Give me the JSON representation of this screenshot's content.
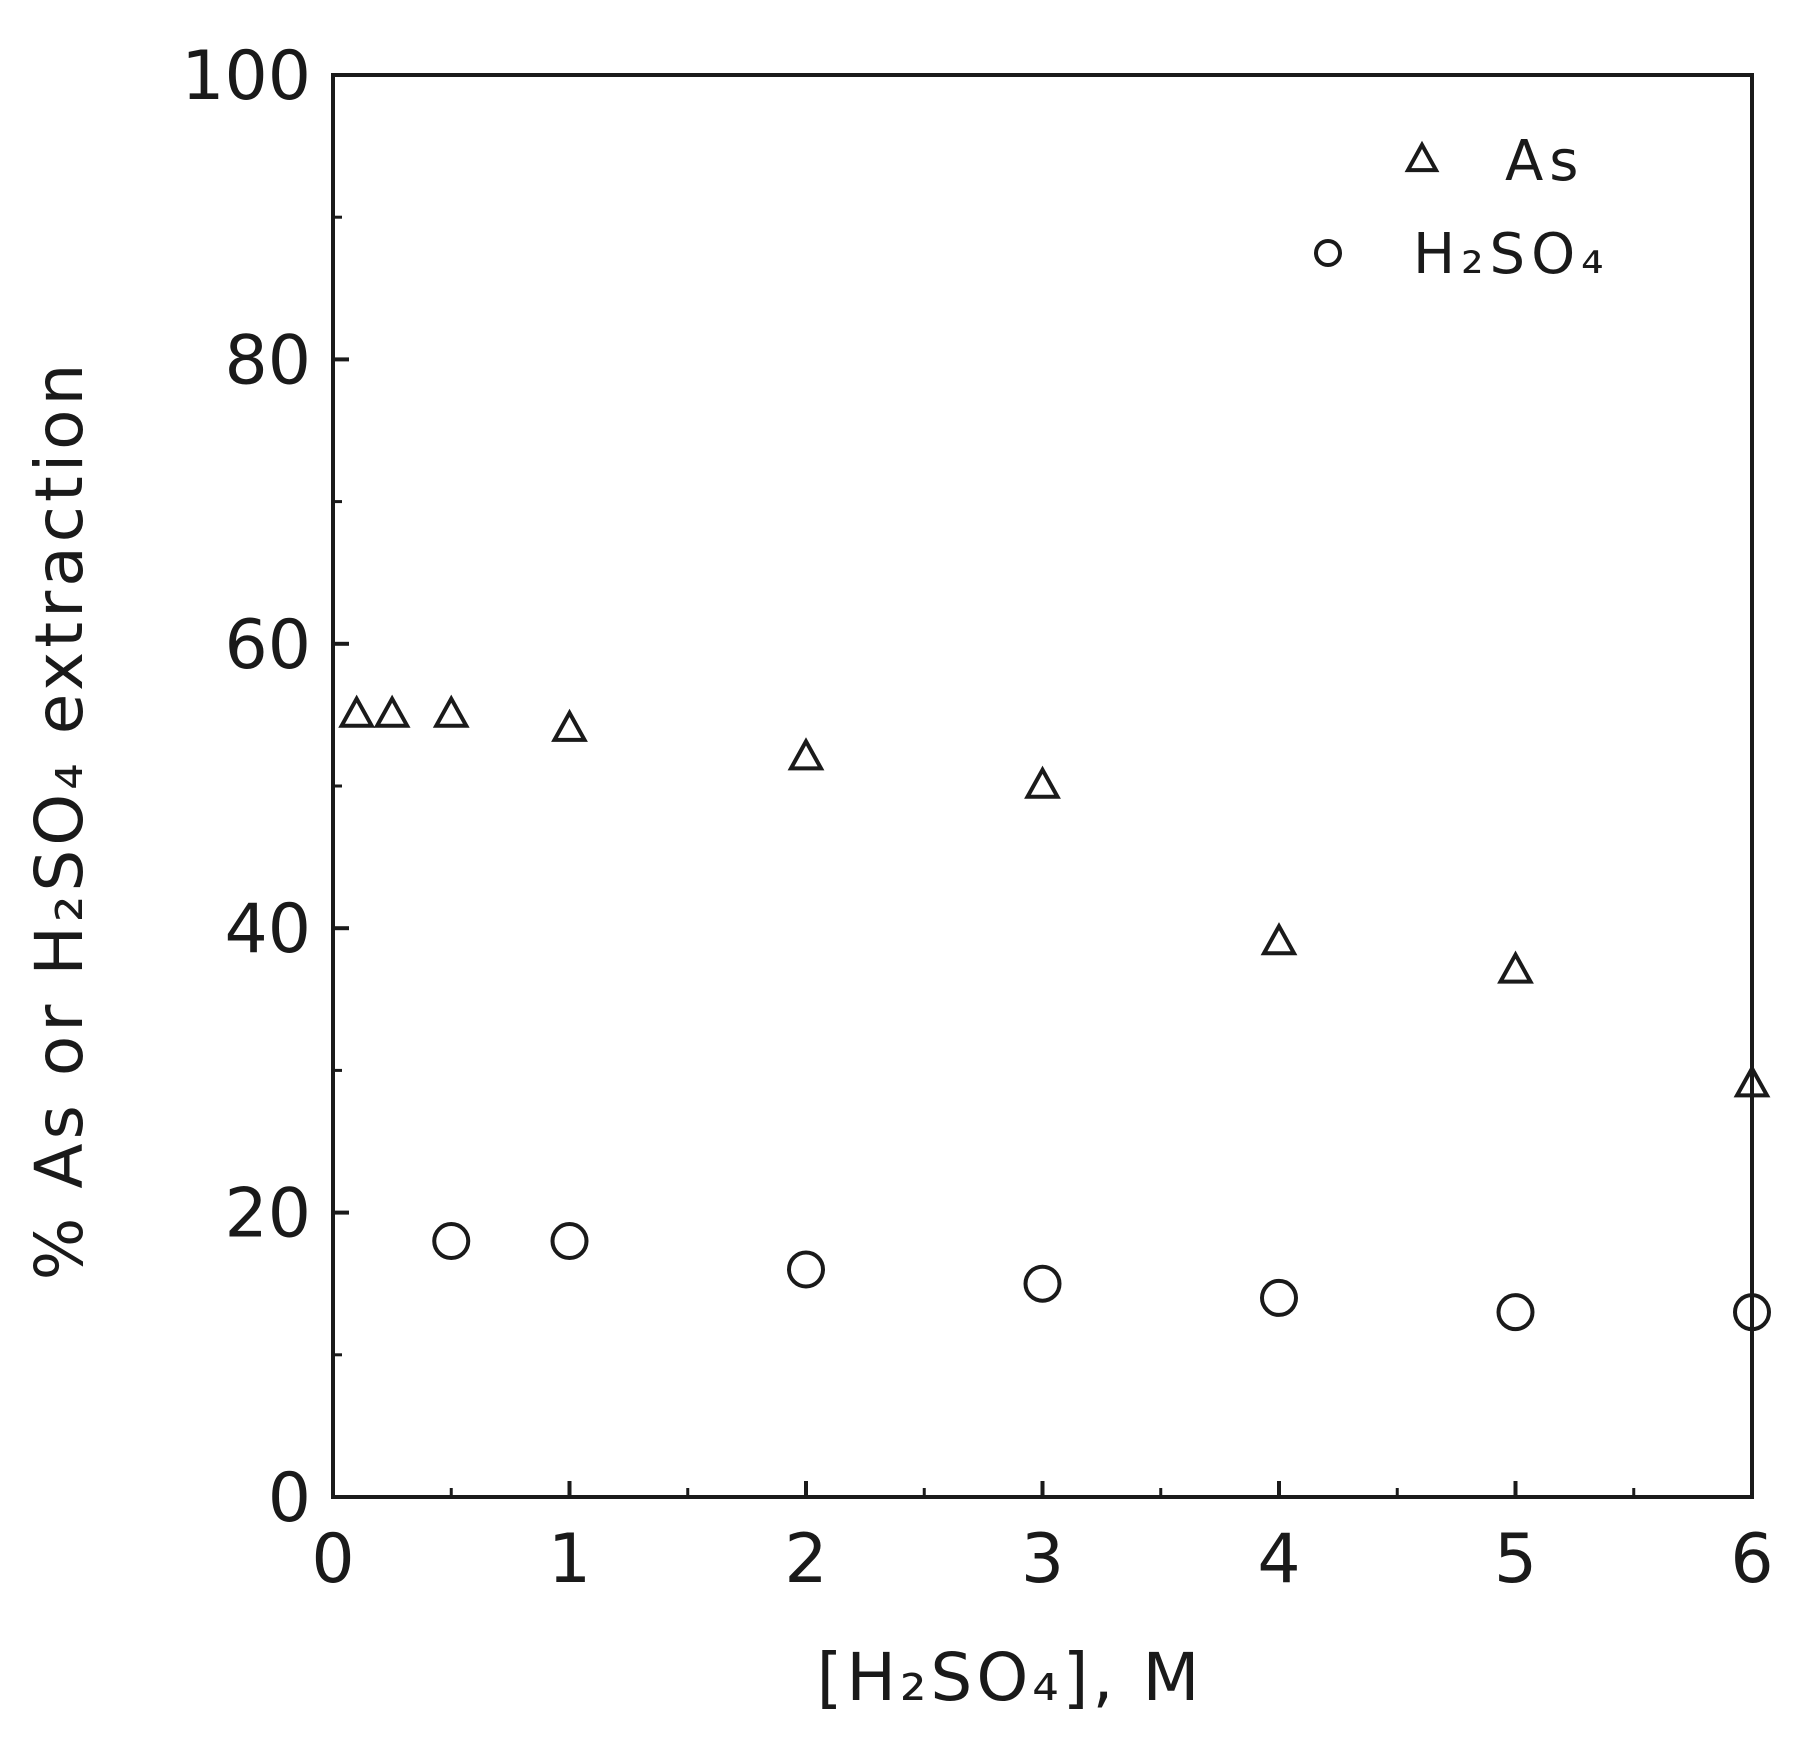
{
  "chart_data": {
    "type": "scatter",
    "xlabel": "[H₂SO₄], M",
    "ylabel": "% As or H₂SO₄ extraction",
    "xlim": [
      0,
      6
    ],
    "ylim": [
      0,
      100
    ],
    "x_ticks": [
      "0",
      "1",
      "2",
      "3",
      "4",
      "5",
      "6"
    ],
    "y_ticks": [
      "0",
      "20",
      "40",
      "60",
      "80",
      "100"
    ],
    "grid": false,
    "legend_position": "top-right",
    "series": [
      {
        "name": "As",
        "marker": "triangle",
        "points": [
          {
            "x": 0.1,
            "y": 55
          },
          {
            "x": 0.25,
            "y": 55
          },
          {
            "x": 0.5,
            "y": 55
          },
          {
            "x": 1,
            "y": 54
          },
          {
            "x": 2,
            "y": 52
          },
          {
            "x": 3,
            "y": 50
          },
          {
            "x": 4,
            "y": 39
          },
          {
            "x": 5,
            "y": 37
          },
          {
            "x": 6,
            "y": 29
          }
        ]
      },
      {
        "name": "H₂SO₄",
        "marker": "circle",
        "points": [
          {
            "x": 0.5,
            "y": 18
          },
          {
            "x": 1,
            "y": 18
          },
          {
            "x": 2,
            "y": 16
          },
          {
            "x": 3,
            "y": 15
          },
          {
            "x": 4,
            "y": 14
          },
          {
            "x": 5,
            "y": 13
          },
          {
            "x": 6,
            "y": 13
          }
        ]
      }
    ]
  }
}
